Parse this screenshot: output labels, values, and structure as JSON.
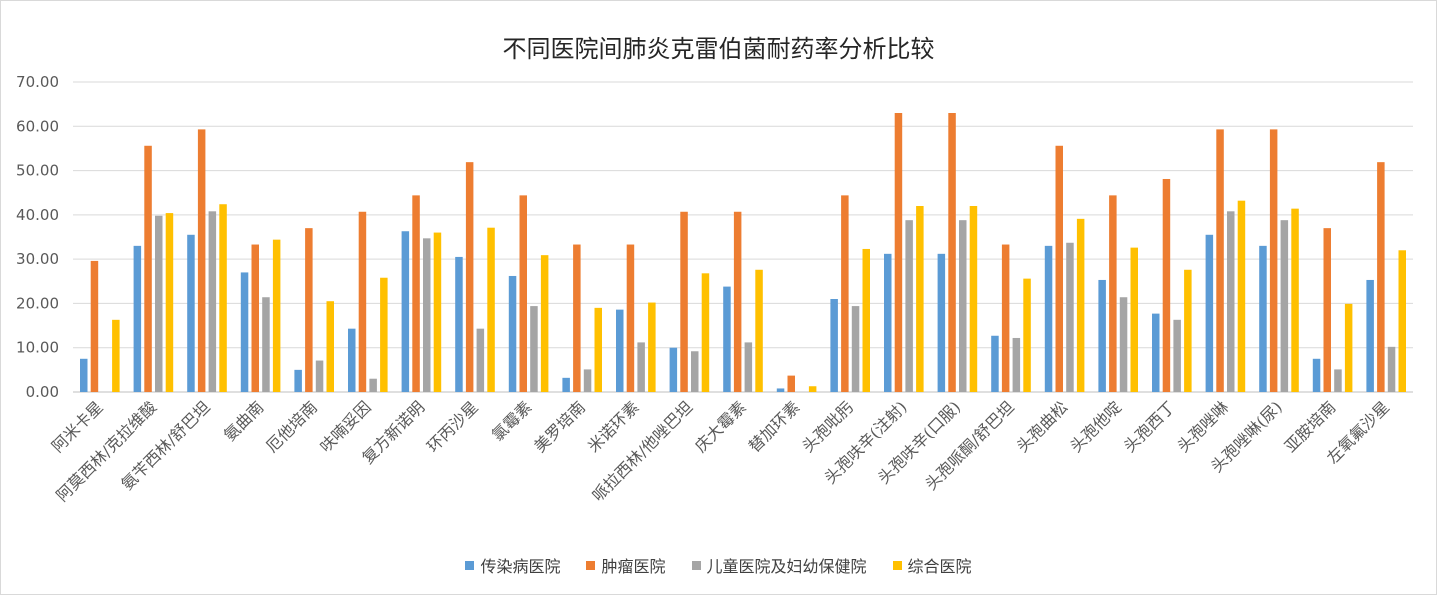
{
  "chart_data": {
    "type": "bar",
    "title": "不同医院间肺炎克雷伯菌耐药率分析比较",
    "xlabel": "",
    "ylabel": "",
    "ylim": [
      0,
      70
    ],
    "yticks": [
      "0.00",
      "10.00",
      "20.00",
      "30.00",
      "40.00",
      "50.00",
      "60.00",
      "70.00"
    ],
    "grid": true,
    "legend_position": "bottom",
    "categories": [
      "阿米卡星",
      "阿莫西林/克拉维酸",
      "氨苄西林/舒巴坦",
      "氨曲南",
      "厄他培南",
      "呋喃妥因",
      "复方新诺明",
      "环丙沙星",
      "氯霉素",
      "美罗培南",
      "米诺环素",
      "哌拉西林/他唑巴坦",
      "庆大霉素",
      "替加环素",
      "头孢吡肟",
      "头孢呋辛(注射)",
      "头孢呋辛(口服)",
      "头孢哌酮/舒巴坦",
      "头孢曲松",
      "头孢他啶",
      "头孢西丁",
      "头孢唑啉",
      "头孢唑啉(尿)",
      "亚胺培南",
      "左氧氟沙星"
    ],
    "series": [
      {
        "name": "传染病医院",
        "color": "#5b9bd5",
        "values": [
          7.5,
          33.0,
          35.5,
          27.0,
          5.0,
          14.3,
          36.3,
          30.5,
          26.2,
          3.2,
          18.6,
          10.0,
          23.8,
          0.8,
          21.0,
          31.2,
          31.2,
          12.7,
          33.0,
          25.3,
          17.7,
          35.5,
          33.0,
          7.5,
          25.3
        ]
      },
      {
        "name": "肿瘤医院",
        "color": "#ed7d31",
        "values": [
          29.6,
          55.6,
          59.3,
          33.3,
          37.0,
          40.7,
          44.4,
          51.9,
          44.4,
          33.3,
          33.3,
          40.7,
          40.7,
          3.7,
          44.4,
          63.0,
          63.0,
          33.3,
          55.6,
          44.4,
          48.1,
          59.3,
          59.3,
          37.0,
          51.9
        ]
      },
      {
        "name": "儿童医院及妇幼保健院",
        "color": "#a5a5a5",
        "values": [
          0,
          39.8,
          40.8,
          21.4,
          7.1,
          3.0,
          34.7,
          14.3,
          19.4,
          5.1,
          11.2,
          9.2,
          11.2,
          0,
          19.4,
          38.8,
          38.8,
          12.2,
          33.7,
          21.4,
          16.3,
          40.8,
          38.8,
          5.1,
          10.2
        ]
      },
      {
        "name": "综合医院",
        "color": "#ffc000",
        "values": [
          16.3,
          40.4,
          42.4,
          34.4,
          20.5,
          25.8,
          36.0,
          37.1,
          30.9,
          19.0,
          20.2,
          26.8,
          27.6,
          1.3,
          32.3,
          42.0,
          42.0,
          25.6,
          39.1,
          32.6,
          27.6,
          43.2,
          41.4,
          19.9,
          32.0
        ]
      }
    ]
  }
}
